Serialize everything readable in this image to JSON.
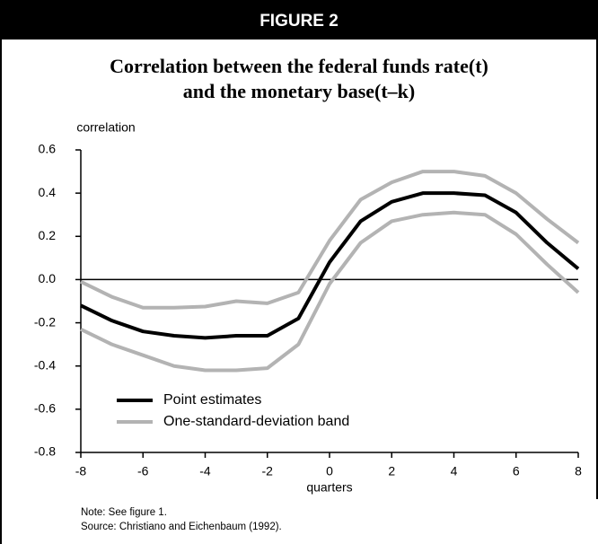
{
  "chart_data": {
    "type": "line",
    "figure_label": "FIGURE 2",
    "title": [
      "Correlation between the federal funds rate(t)",
      "and the monetary base(t–k)"
    ],
    "ylabel": "correlation",
    "xlabel": "quarters",
    "notes": [
      "Note: See figure 1.",
      "Source: Christiano and Eichenbaum (1992)."
    ],
    "x": [
      -8,
      -7,
      -6,
      -5,
      -4,
      -3,
      -2,
      -1,
      0,
      1,
      2,
      3,
      4,
      5,
      6,
      7,
      8
    ],
    "series": [
      {
        "name": "Point estimates",
        "color": "#000000",
        "values": [
          -0.12,
          -0.19,
          -0.24,
          -0.26,
          -0.27,
          -0.26,
          -0.26,
          -0.18,
          0.08,
          0.27,
          0.36,
          0.4,
          0.4,
          0.39,
          0.31,
          0.17,
          0.05
        ]
      }
    ],
    "band": {
      "name": "One-standard-deviation band",
      "color": "#b3b3b3",
      "upper": [
        -0.01,
        -0.08,
        -0.13,
        -0.13,
        -0.125,
        -0.1,
        -0.11,
        -0.06,
        0.18,
        0.37,
        0.45,
        0.5,
        0.5,
        0.48,
        0.4,
        0.28,
        0.17
      ],
      "lower": [
        -0.23,
        -0.3,
        -0.35,
        -0.4,
        -0.42,
        -0.42,
        -0.41,
        -0.3,
        -0.02,
        0.17,
        0.27,
        0.3,
        0.31,
        0.3,
        0.21,
        0.07,
        -0.06
      ]
    },
    "xlim": [
      -8,
      8
    ],
    "xticks": [
      -8,
      -6,
      -4,
      -2,
      0,
      2,
      4,
      6,
      8
    ],
    "ylim": [
      -0.8,
      0.6
    ],
    "yticks": [
      0.6,
      0.4,
      0.2,
      {
        "value": 0,
        "label": "0.0"
      },
      -0.2,
      -0.4,
      -0.6,
      -0.8
    ],
    "legend": "lower left"
  }
}
